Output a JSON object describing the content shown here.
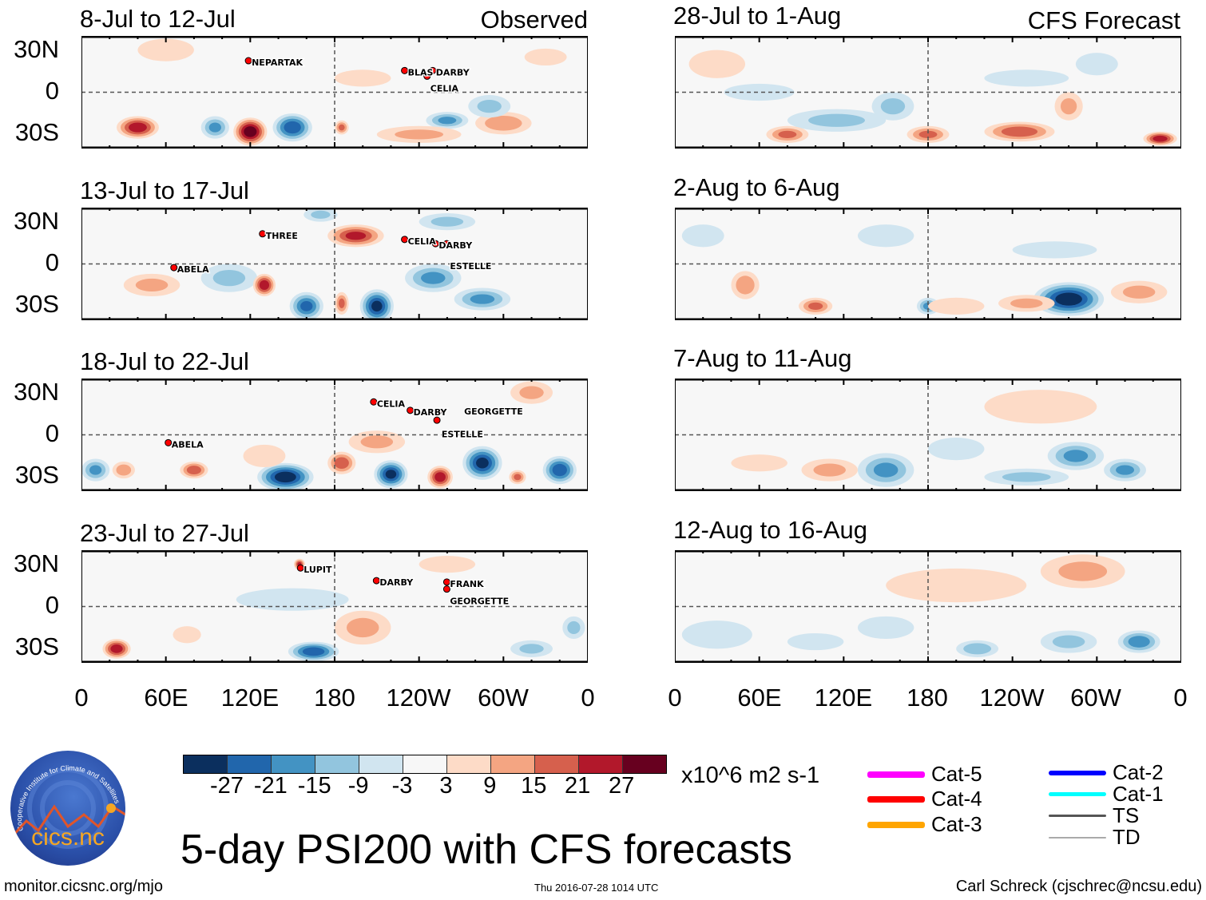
{
  "colors": {
    "levels": [
      "#0b2f5e",
      "#2166ac",
      "#4393c3",
      "#92c5de",
      "#d1e5f0",
      "#f7f7f7",
      "#fddbc7",
      "#f4a582",
      "#d6604d",
      "#b2182b",
      "#67001f"
    ],
    "cat5": "#ff00ff",
    "cat4": "#ff0000",
    "cat3": "#ffa500",
    "cat2": "#0000ff",
    "cat1": "#00ffff",
    "ts": "#555555",
    "td": "#aaaaaa"
  },
  "column_labels": {
    "left": "Observed",
    "right": "CFS Forecast"
  },
  "lat_labels": [
    "30N",
    "0",
    "30S"
  ],
  "lon_labels": [
    "0",
    "60E",
    "120E",
    "180",
    "120W",
    "60W",
    "0"
  ],
  "colorbar": {
    "ticks": [
      "-27",
      "-21",
      "-15",
      "-9",
      "-3",
      "3",
      "9",
      "15",
      "21",
      "27"
    ],
    "units": "x10^6 m2 s-1"
  },
  "legend": [
    "Cat-5",
    "Cat-4",
    "Cat-3",
    "Cat-2",
    "Cat-1",
    "TS",
    "TD"
  ],
  "title": "5-day PSI200 with CFS forecasts",
  "footer": {
    "url": "monitor.cicsnc.org/mjo",
    "timestamp": "Thu 2016-07-28 1014 UTC",
    "author": "Carl Schreck (cjschrec@ncsu.edu)"
  },
  "logo": {
    "name": "cics.nc",
    "ring_text": "Cooperative Institute for Climate and Satellites"
  },
  "chart_data": [
    {
      "type": "heatmap",
      "title": "8-Jul to 12-Jul",
      "kind": "Observed",
      "anomalies": [
        [
          40,
          -25,
          24,
          15,
          8
        ],
        [
          120,
          -28,
          30,
          12,
          10
        ],
        [
          150,
          -25,
          -24,
          14,
          10
        ],
        [
          95,
          -25,
          -15,
          10,
          8
        ],
        [
          185,
          -25,
          15,
          5,
          5
        ],
        [
          260,
          -20,
          -15,
          15,
          6
        ],
        [
          300,
          -22,
          12,
          20,
          8
        ],
        [
          240,
          -30,
          9,
          30,
          6
        ],
        [
          200,
          10,
          3,
          20,
          6
        ],
        [
          290,
          -10,
          -9,
          15,
          8
        ],
        [
          60,
          30,
          6,
          20,
          8
        ],
        [
          330,
          25,
          6,
          15,
          6
        ]
      ],
      "storms": [
        {
          "name": "NEPARTAK",
          "lon": 121,
          "lat": 19
        },
        {
          "name": "BLAS",
          "lon": 232,
          "lat": 12
        },
        {
          "name": "DARBY",
          "lon": 252,
          "lat": 12
        },
        {
          "name": "CELIA",
          "lon": 248,
          "lat": 8
        }
      ]
    },
    {
      "type": "heatmap",
      "title": "13-Jul to 17-Jul",
      "kind": "Observed",
      "anomalies": [
        [
          105,
          -10,
          -9,
          20,
          10
        ],
        [
          130,
          -15,
          24,
          8,
          8
        ],
        [
          160,
          -30,
          -21,
          12,
          10
        ],
        [
          210,
          -30,
          -27,
          12,
          12
        ],
        [
          185,
          -28,
          15,
          5,
          8
        ],
        [
          195,
          20,
          21,
          20,
          8
        ],
        [
          170,
          35,
          -9,
          12,
          5
        ],
        [
          250,
          -10,
          -15,
          20,
          10
        ],
        [
          285,
          -25,
          -15,
          20,
          8
        ],
        [
          50,
          -15,
          9,
          20,
          8
        ],
        [
          260,
          30,
          -9,
          20,
          6
        ]
      ],
      "storms": [
        {
          "name": "THREE",
          "lon": 131,
          "lat": 18
        },
        {
          "name": "ABELA",
          "lon": 68,
          "lat": -6
        },
        {
          "name": "CELIA",
          "lon": 232,
          "lat": 14
        },
        {
          "name": "DARBY",
          "lon": 254,
          "lat": 11
        },
        {
          "name": "ESTELLE",
          "lon": 262,
          "lat": 11
        }
      ]
    },
    {
      "type": "heatmap",
      "title": "18-Jul to 22-Jul",
      "kind": "Observed",
      "anomalies": [
        [
          145,
          -30,
          -30,
          20,
          10
        ],
        [
          185,
          -20,
          18,
          10,
          8
        ],
        [
          220,
          -28,
          -27,
          12,
          10
        ],
        [
          255,
          -30,
          24,
          9,
          8
        ],
        [
          285,
          -20,
          -27,
          14,
          12
        ],
        [
          340,
          -25,
          -24,
          12,
          10
        ],
        [
          80,
          -25,
          18,
          10,
          6
        ],
        [
          10,
          -25,
          -15,
          10,
          8
        ],
        [
          30,
          -25,
          12,
          8,
          6
        ],
        [
          310,
          -30,
          15,
          6,
          5
        ],
        [
          320,
          30,
          9,
          15,
          8
        ],
        [
          210,
          -5,
          9,
          20,
          8
        ],
        [
          130,
          -15,
          6,
          15,
          8
        ]
      ],
      "storms": [
        {
          "name": "CELIA",
          "lon": 210,
          "lat": 20
        },
        {
          "name": "DARBY",
          "lon": 236,
          "lat": 14
        },
        {
          "name": "ESTELLE",
          "lon": 256,
          "lat": 13
        },
        {
          "name": "GEORGETTE",
          "lon": 255,
          "lat": 7
        },
        {
          "name": "ABELA",
          "lon": 64,
          "lat": -9
        }
      ]
    },
    {
      "type": "heatmap",
      "title": "23-Jul to 27-Jul",
      "kind": "Observed",
      "anomalies": [
        [
          25,
          -30,
          24,
          10,
          7
        ],
        [
          165,
          -32,
          -24,
          18,
          7
        ],
        [
          200,
          -15,
          9,
          20,
          12
        ],
        [
          150,
          5,
          -6,
          40,
          8
        ],
        [
          155,
          30,
          21,
          4,
          4
        ],
        [
          75,
          -20,
          6,
          10,
          6
        ],
        [
          320,
          -30,
          -9,
          15,
          6
        ],
        [
          260,
          30,
          6,
          20,
          6
        ],
        [
          350,
          -15,
          -9,
          8,
          8
        ]
      ],
      "storms": [
        {
          "name": "LUPIT",
          "lon": 158,
          "lat": 24
        },
        {
          "name": "DARBY",
          "lon": 212,
          "lat": 15
        },
        {
          "name": "FRANK",
          "lon": 262,
          "lat": 14
        },
        {
          "name": "GEORGETTE",
          "lon": 262,
          "lat": 9
        }
      ]
    },
    {
      "type": "heatmap",
      "title": "28-Jul to 1-Aug",
      "kind": "CFS Forecast",
      "anomalies": [
        [
          115,
          -20,
          -9,
          35,
          8
        ],
        [
          80,
          -30,
          15,
          15,
          6
        ],
        [
          180,
          -30,
          15,
          15,
          6
        ],
        [
          245,
          -28,
          18,
          25,
          7
        ],
        [
          345,
          -33,
          24,
          12,
          5
        ],
        [
          280,
          -10,
          9,
          10,
          10
        ],
        [
          30,
          20,
          6,
          20,
          10
        ],
        [
          155,
          -10,
          -9,
          15,
          10
        ],
        [
          60,
          0,
          -6,
          25,
          6
        ],
        [
          250,
          10,
          -6,
          30,
          6
        ],
        [
          300,
          20,
          -6,
          15,
          8
        ]
      ],
      "storms": []
    },
    {
      "type": "heatmap",
      "title": "2-Aug to 6-Aug",
      "kind": "CFS Forecast",
      "anomalies": [
        [
          280,
          -25,
          -30,
          25,
          12
        ],
        [
          50,
          -15,
          12,
          10,
          10
        ],
        [
          100,
          -30,
          15,
          12,
          6
        ],
        [
          180,
          -30,
          -15,
          8,
          6
        ],
        [
          250,
          -28,
          9,
          20,
          6
        ],
        [
          200,
          -30,
          6,
          20,
          6
        ],
        [
          20,
          20,
          -6,
          15,
          8
        ],
        [
          150,
          20,
          -6,
          20,
          8
        ],
        [
          330,
          -20,
          9,
          20,
          8
        ],
        [
          270,
          10,
          -6,
          30,
          6
        ]
      ],
      "storms": []
    },
    {
      "type": "heatmap",
      "title": "7-Aug to 11-Aug",
      "kind": "CFS Forecast",
      "anomalies": [
        [
          150,
          -25,
          -15,
          20,
          12
        ],
        [
          110,
          -25,
          9,
          20,
          8
        ],
        [
          285,
          -15,
          -15,
          20,
          10
        ],
        [
          320,
          -25,
          -15,
          15,
          8
        ],
        [
          260,
          20,
          6,
          40,
          12
        ],
        [
          250,
          -30,
          -9,
          30,
          6
        ],
        [
          60,
          -20,
          6,
          20,
          6
        ],
        [
          200,
          -10,
          -6,
          20,
          8
        ]
      ],
      "storms": []
    },
    {
      "type": "heatmap",
      "title": "12-Aug to 16-Aug",
      "kind": "CFS Forecast",
      "anomalies": [
        [
          330,
          -25,
          -18,
          15,
          8
        ],
        [
          215,
          -30,
          -12,
          15,
          6
        ],
        [
          280,
          -25,
          -9,
          20,
          8
        ],
        [
          200,
          15,
          6,
          50,
          12
        ],
        [
          290,
          25,
          9,
          30,
          12
        ],
        [
          30,
          -20,
          -6,
          25,
          10
        ],
        [
          100,
          -25,
          -6,
          20,
          6
        ],
        [
          150,
          -15,
          -6,
          20,
          8
        ]
      ],
      "storms": []
    }
  ]
}
